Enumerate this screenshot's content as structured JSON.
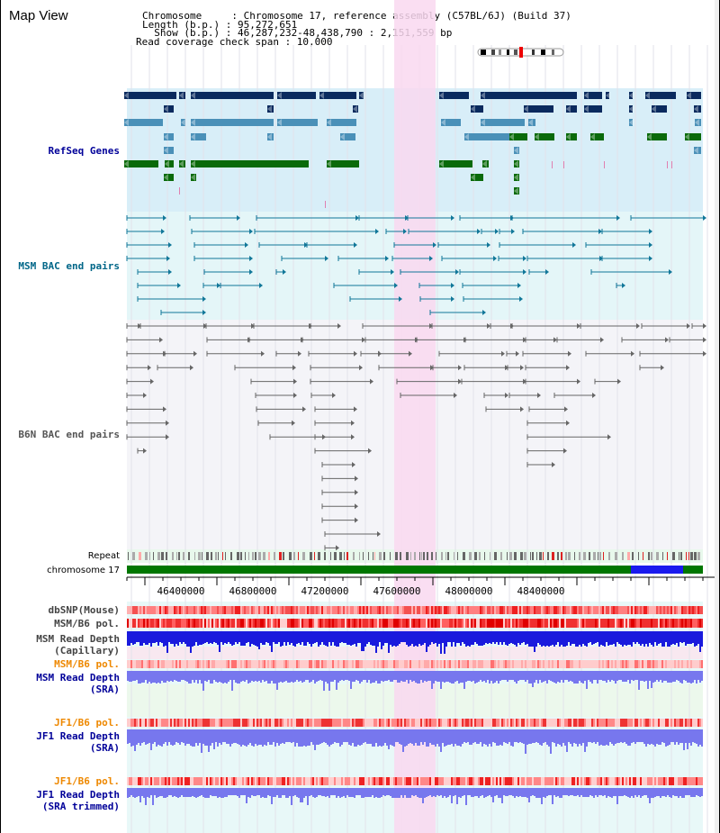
{
  "window": {
    "title": "Map View"
  },
  "header": {
    "chromosome_line": "Chromosome     : Chromosome 17, reference assembly (C57BL/6J) (Build 37)",
    "length_line": "Length (b.p.) : 95,272,651",
    "show_line": "  Show (b.p.) : 46,287,232-48,438,790 : 2,151,559 bp",
    "span_line": "Read coverage check span : 10,000"
  },
  "tracks": {
    "refseq": {
      "label": "RefSeq Genes",
      "color": "#000099"
    },
    "msm_bac": {
      "label": "MSM BAC end pairs",
      "color": "#006688"
    },
    "b6n_bac": {
      "label": "B6N BAC end pairs",
      "color": "#555555"
    },
    "repeat": {
      "label": "Repeat"
    },
    "chromosome": {
      "label": "chromosome 17"
    },
    "dbsnp": {
      "label": "dbSNP(Mouse)",
      "color": "#444444"
    },
    "msm_b6_pol1": {
      "label": "MSM/B6 pol.",
      "color": "#444444"
    },
    "msm_depth_cap": {
      "label": "MSM Read Depth\n(Capillary)",
      "color": "#444444"
    },
    "msm_b6_pol2": {
      "label": "MSM/B6 pol.",
      "color": "#ee8800"
    },
    "msm_depth_sra": {
      "label": "MSM Read Depth\n(SRA)",
      "color": "#000099"
    },
    "jf1_b6_pol1": {
      "label": "JF1/B6 pol.",
      "color": "#ee8800"
    },
    "jf1_depth_sra": {
      "label": "JF1 Read Depth\n(SRA)",
      "color": "#000099"
    },
    "jf1_b6_pol2": {
      "label": "JF1/B6 pol.",
      "color": "#ee8800"
    },
    "jf1_depth_trim": {
      "label": "JF1 Read Depth\n(SRA trimmed)",
      "color": "#000099"
    }
  },
  "axis": {
    "ticks": [
      "46400000",
      "46800000",
      "47200000",
      "47600000",
      "48000000",
      "48400000"
    ]
  },
  "colors": {
    "highlight": "#f9d8f0",
    "gene_dark": "#0a2a5e",
    "gene_mid": "#4a90b8",
    "gene_green": "#0a6a0a",
    "chromosome_green": "#007700",
    "chromosome_blue": "#1a1aee",
    "depth_blue": "#1a1add",
    "depth_light": "#7777ee"
  }
}
